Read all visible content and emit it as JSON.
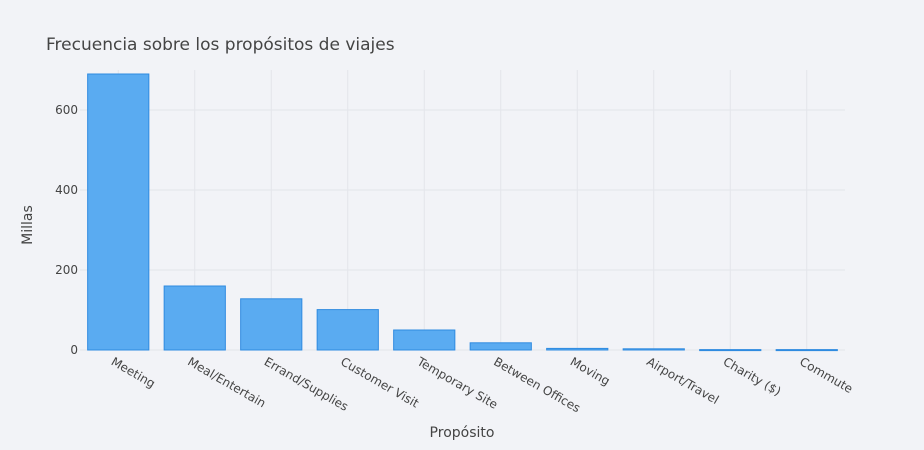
{
  "chart_data": {
    "type": "bar",
    "title": "Frecuencia sobre los propósitos de viajes",
    "xlabel": "Propósito",
    "ylabel": "Millas",
    "categories": [
      "Meeting",
      "Meal/Entertain",
      "Errand/Supplies",
      "Customer Visit",
      "Temporary Site",
      "Between Offices",
      "Moving",
      "Airport/Travel",
      "Charity ($)",
      "Commute"
    ],
    "values": [
      690,
      160,
      128,
      101,
      50,
      18,
      4,
      3,
      1,
      1
    ],
    "ylim": [
      0,
      700
    ],
    "yticks": [
      0,
      200,
      400,
      600
    ],
    "grid": true,
    "colors": {
      "bar_fill": "#5aabf1",
      "bar_stroke": "#2f8be0",
      "background": "#f2f3f7",
      "grid": "#e3e5ea"
    }
  }
}
